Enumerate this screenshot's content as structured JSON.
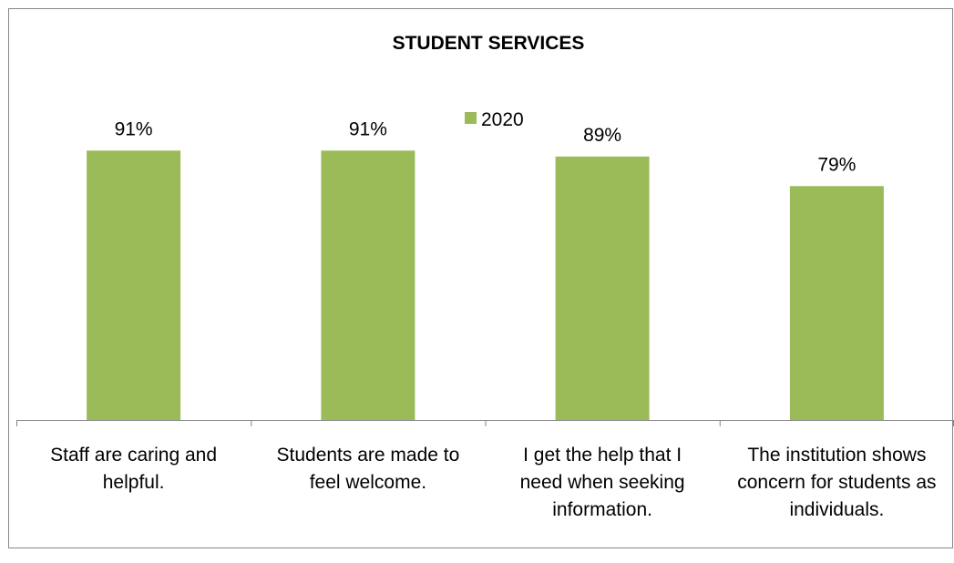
{
  "chart_data": {
    "type": "bar",
    "title": "STUDENT SERVICES",
    "categories": [
      [
        "Staff are caring and",
        "helpful."
      ],
      [
        "Students are made to",
        "feel welcome."
      ],
      [
        "I get the help that I",
        "need when seeking",
        "information."
      ],
      [
        "The institution shows",
        "concern for students as",
        "individuals."
      ]
    ],
    "series": [
      {
        "name": "2020",
        "values": [
          91,
          91,
          89,
          79
        ],
        "data_labels": [
          "91%",
          "91%",
          "89%",
          "79%"
        ],
        "color": "#9BBB59"
      }
    ],
    "ylim": [
      0,
      100
    ],
    "xlabel": "",
    "ylabel": "",
    "grid": false,
    "legend_position": "top"
  },
  "colors": {
    "bar": "#9BBB59",
    "axis": "#868686",
    "border": "#868686"
  }
}
